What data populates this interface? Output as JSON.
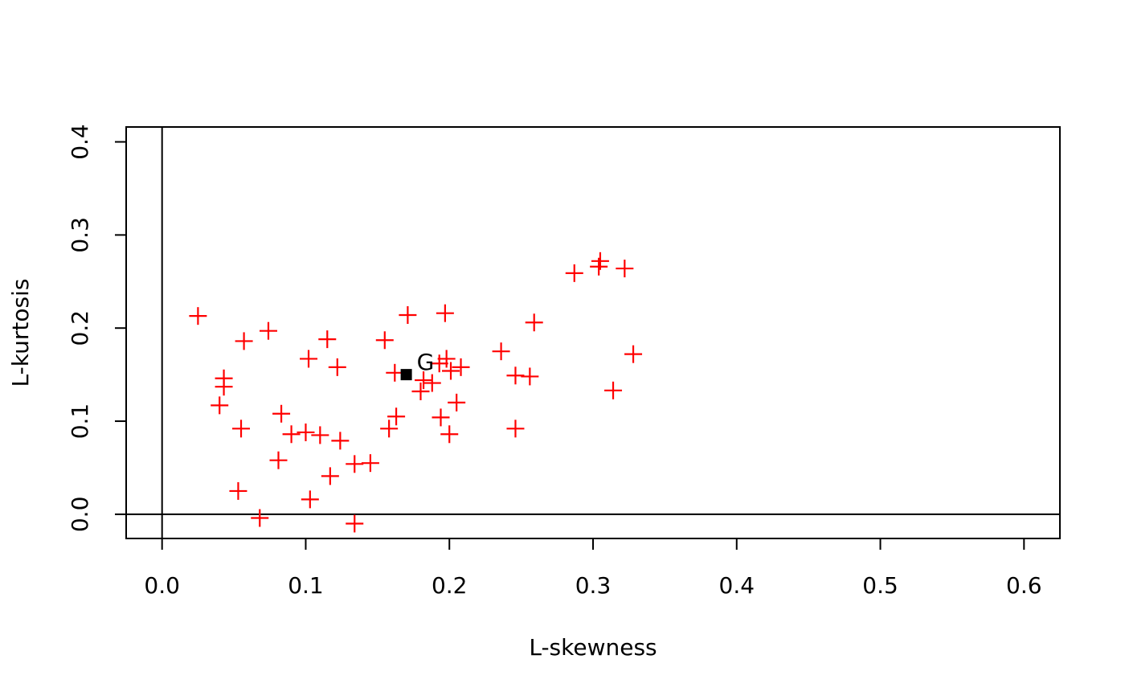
{
  "chart_data": {
    "type": "scatter",
    "title": "",
    "xlabel": "L-skewness",
    "ylabel": "L-kurtosis",
    "xlim": [
      -0.025,
      0.625
    ],
    "ylim": [
      -0.026,
      0.416
    ],
    "xticks": [
      "0.0",
      "0.1",
      "0.2",
      "0.3",
      "0.4",
      "0.5",
      "0.6"
    ],
    "yticks": [
      "0.0",
      "0.1",
      "0.2",
      "0.3",
      "0.4"
    ],
    "grid": false,
    "reference_lines": {
      "x": 0,
      "y": 0
    },
    "colors": {
      "points": "#ff0000",
      "average": "#000000",
      "axes": "#000000"
    },
    "series": [
      {
        "marker": "plus",
        "color": "#ff0000",
        "points": [
          [
            0.025,
            0.213
          ],
          [
            0.043,
            0.146
          ],
          [
            0.043,
            0.137
          ],
          [
            0.04,
            0.117
          ],
          [
            0.055,
            0.092
          ],
          [
            0.057,
            0.186
          ],
          [
            0.053,
            0.025
          ],
          [
            0.068,
            -0.004
          ],
          [
            0.074,
            0.197
          ],
          [
            0.083,
            0.108
          ],
          [
            0.09,
            0.086
          ],
          [
            0.081,
            0.058
          ],
          [
            0.102,
            0.167
          ],
          [
            0.1,
            0.088
          ],
          [
            0.11,
            0.085
          ],
          [
            0.115,
            0.188
          ],
          [
            0.122,
            0.158
          ],
          [
            0.124,
            0.079
          ],
          [
            0.117,
            0.041
          ],
          [
            0.103,
            0.016
          ],
          [
            0.134,
            0.054
          ],
          [
            0.134,
            -0.01
          ],
          [
            0.145,
            0.055
          ],
          [
            0.155,
            0.187
          ],
          [
            0.158,
            0.092
          ],
          [
            0.163,
            0.105
          ],
          [
            0.162,
            0.152
          ],
          [
            0.171,
            0.214
          ],
          [
            0.18,
            0.132
          ],
          [
            0.182,
            0.144
          ],
          [
            0.188,
            0.141
          ],
          [
            0.197,
            0.216
          ],
          [
            0.198,
            0.167
          ],
          [
            0.193,
            0.162
          ],
          [
            0.201,
            0.154
          ],
          [
            0.208,
            0.158
          ],
          [
            0.194,
            0.104
          ],
          [
            0.205,
            0.12
          ],
          [
            0.2,
            0.086
          ],
          [
            0.236,
            0.175
          ],
          [
            0.246,
            0.092
          ],
          [
            0.246,
            0.149
          ],
          [
            0.256,
            0.148
          ],
          [
            0.259,
            0.206
          ],
          [
            0.287,
            0.259
          ],
          [
            0.304,
            0.266
          ],
          [
            0.305,
            0.272
          ],
          [
            0.322,
            0.264
          ],
          [
            0.314,
            0.133
          ],
          [
            0.328,
            0.172
          ]
        ]
      }
    ],
    "average_point": {
      "x": 0.17,
      "y": 0.15,
      "marker": "square",
      "label": "G"
    }
  }
}
